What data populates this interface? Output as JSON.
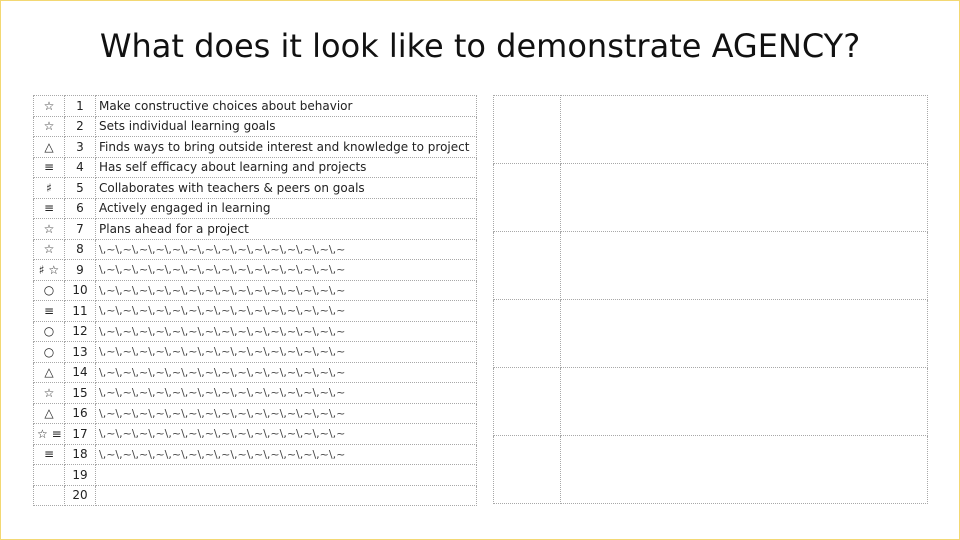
{
  "slide": {
    "title": "What does it look like to demonstrate AGENCY?"
  },
  "list": {
    "rows": [
      {
        "symbol": "☆",
        "num": "1",
        "text": "Make constructive choices about behavior"
      },
      {
        "symbol": "☆",
        "num": "2",
        "text": "Sets individual learning goals"
      },
      {
        "symbol": "△",
        "num": "3",
        "text": "Finds ways to bring outside interest and knowledge to project"
      },
      {
        "symbol": "≡",
        "num": "4",
        "text": "Has self efficacy about learning and projects"
      },
      {
        "symbol": "♯",
        "num": "5",
        "text": "Collaborates with teachers & peers on goals"
      },
      {
        "symbol": "≡",
        "num": "6",
        "text": "Actively engaged in learning"
      },
      {
        "symbol": "☆",
        "num": "7",
        "text": "Plans ahead for a project"
      },
      {
        "symbol": "☆",
        "num": "8",
        "text": "\\,~\\,~\\,~\\,~\\,~\\,~\\,~\\,~\\,~\\,~\\,~\\,~\\,~\\,~\\,~"
      },
      {
        "symbol": "♯ ☆",
        "num": "9",
        "text": "\\,~\\,~\\,~\\,~\\,~\\,~\\,~\\,~\\,~\\,~\\,~\\,~\\,~\\,~\\,~"
      },
      {
        "symbol": "○",
        "num": "10",
        "text": "\\,~\\,~\\,~\\,~\\,~\\,~\\,~\\,~\\,~\\,~\\,~\\,~\\,~\\,~\\,~"
      },
      {
        "symbol": "≡",
        "num": "11",
        "text": "\\,~\\,~\\,~\\,~\\,~\\,~\\,~\\,~\\,~\\,~\\,~\\,~\\,~\\,~\\,~"
      },
      {
        "symbol": "○",
        "num": "12",
        "text": "\\,~\\,~\\,~\\,~\\,~\\,~\\,~\\,~\\,~\\,~\\,~\\,~\\,~\\,~\\,~"
      },
      {
        "symbol": "○",
        "num": "13",
        "text": "\\,~\\,~\\,~\\,~\\,~\\,~\\,~\\,~\\,~\\,~\\,~\\,~\\,~\\,~\\,~"
      },
      {
        "symbol": "△",
        "num": "14",
        "text": "\\,~\\,~\\,~\\,~\\,~\\,~\\,~\\,~\\,~\\,~\\,~\\,~\\,~\\,~\\,~"
      },
      {
        "symbol": "☆",
        "num": "15",
        "text": "\\,~\\,~\\,~\\,~\\,~\\,~\\,~\\,~\\,~\\,~\\,~\\,~\\,~\\,~\\,~"
      },
      {
        "symbol": "△",
        "num": "16",
        "text": "\\,~\\,~\\,~\\,~\\,~\\,~\\,~\\,~\\,~\\,~\\,~\\,~\\,~\\,~\\,~"
      },
      {
        "symbol": "☆ ≡",
        "num": "17",
        "text": "\\,~\\,~\\,~\\,~\\,~\\,~\\,~\\,~\\,~\\,~\\,~\\,~\\,~\\,~\\,~"
      },
      {
        "symbol": "≡",
        "num": "18",
        "text": "\\,~\\,~\\,~\\,~\\,~\\,~\\,~\\,~\\,~\\,~\\,~\\,~\\,~\\,~\\,~"
      },
      {
        "symbol": "",
        "num": "19",
        "text": ""
      },
      {
        "symbol": "",
        "num": "20",
        "text": ""
      }
    ]
  },
  "grid": {
    "rows": [
      {
        "a": "",
        "b": ""
      },
      {
        "a": "",
        "b": ""
      },
      {
        "a": "",
        "b": ""
      },
      {
        "a": "",
        "b": ""
      },
      {
        "a": "",
        "b": ""
      },
      {
        "a": "",
        "b": ""
      }
    ]
  }
}
